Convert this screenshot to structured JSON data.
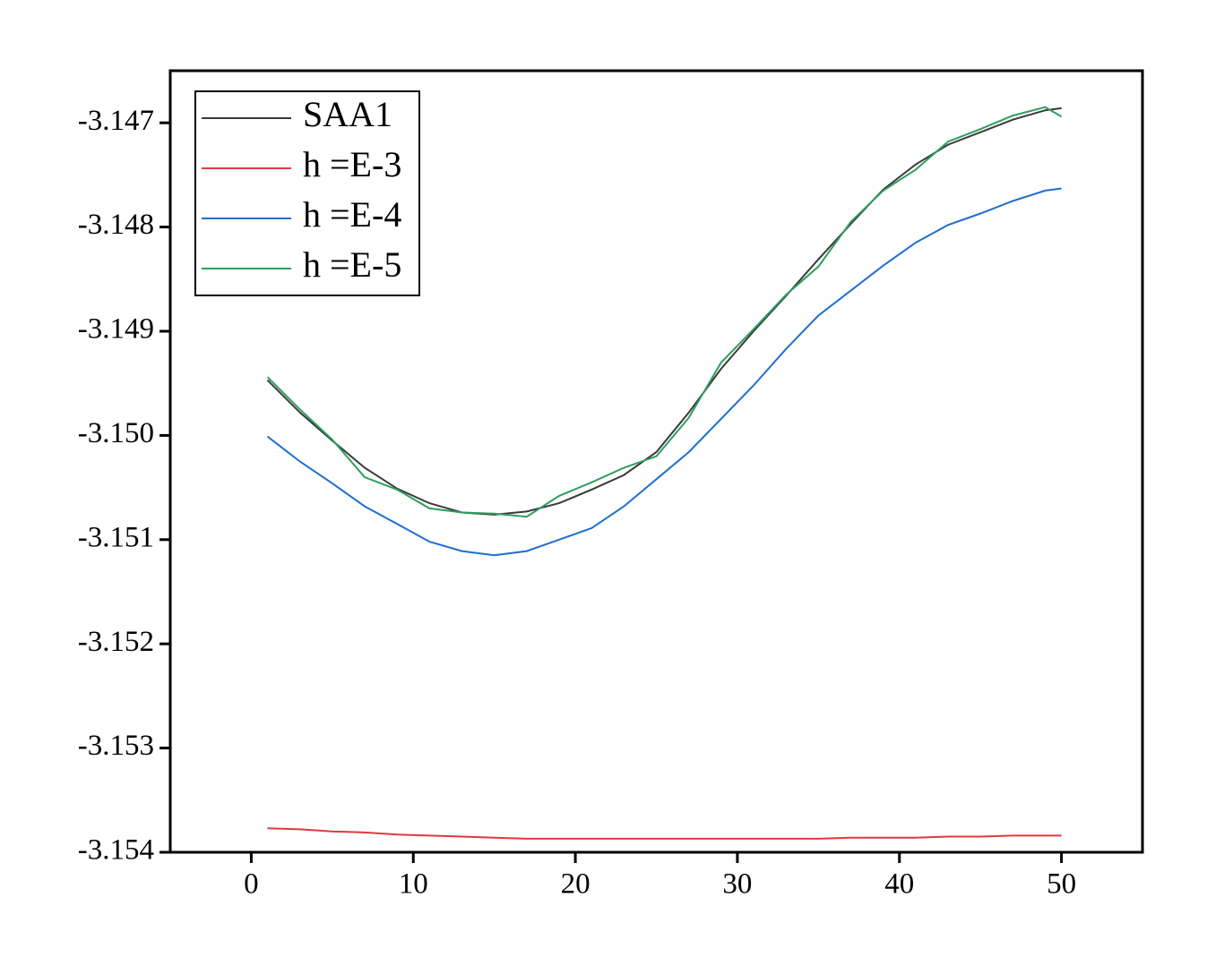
{
  "chart_data": {
    "type": "line",
    "x": [
      1,
      3,
      5,
      7,
      9,
      11,
      13,
      15,
      17,
      19,
      21,
      23,
      25,
      27,
      29,
      31,
      33,
      35,
      37,
      39,
      41,
      43,
      45,
      47,
      49,
      50
    ],
    "series": [
      {
        "name": "SAA1",
        "color": "#3a3a3a",
        "values": [
          -3.14947,
          -3.14978,
          -3.15005,
          -3.15031,
          -3.15051,
          -3.15065,
          -3.15074,
          -3.15076,
          -3.15073,
          -3.15065,
          -3.15052,
          -3.15038,
          -3.15016,
          -3.14978,
          -3.14936,
          -3.149,
          -3.14866,
          -3.14831,
          -3.14797,
          -3.14764,
          -3.1474,
          -3.14721,
          -3.14709,
          -3.14697,
          -3.14688,
          -3.14686
        ]
      },
      {
        "name": "h =E-3",
        "color": "#e0393e",
        "values": [
          -3.15377,
          -3.15378,
          -3.1538,
          -3.15381,
          -3.15383,
          -3.15384,
          -3.15385,
          -3.15386,
          -3.15387,
          -3.15387,
          -3.15387,
          -3.15387,
          -3.15387,
          -3.15387,
          -3.15387,
          -3.15387,
          -3.15387,
          -3.15387,
          -3.15386,
          -3.15386,
          -3.15386,
          -3.15385,
          -3.15385,
          -3.15384,
          -3.15384,
          -3.15384
        ]
      },
      {
        "name": "h =E-4",
        "color": "#1f6fd0",
        "values": [
          -3.15001,
          -3.15025,
          -3.15046,
          -3.15068,
          -3.15085,
          -3.15102,
          -3.15111,
          -3.15115,
          -3.15111,
          -3.151,
          -3.15089,
          -3.15068,
          -3.15042,
          -3.15016,
          -3.14984,
          -3.14952,
          -3.14917,
          -3.14885,
          -3.14861,
          -3.14837,
          -3.14815,
          -3.14798,
          -3.14787,
          -3.14775,
          -3.14765,
          -3.14763
        ]
      },
      {
        "name": "h =E-5",
        "color": "#2e9e5e",
        "values": [
          -3.14944,
          -3.14975,
          -3.15004,
          -3.1504,
          -3.15052,
          -3.1507,
          -3.15074,
          -3.15075,
          -3.15078,
          -3.15058,
          -3.15045,
          -3.15031,
          -3.1502,
          -3.14983,
          -3.1493,
          -3.14898,
          -3.14865,
          -3.14838,
          -3.14795,
          -3.14765,
          -3.14745,
          -3.14718,
          -3.14706,
          -3.14693,
          -3.14685,
          -3.14694
        ]
      }
    ],
    "xlim": [
      -5,
      55
    ],
    "xticks": [
      0,
      10,
      20,
      30,
      40,
      50
    ],
    "ylim": [
      -3.154,
      -3.1465
    ],
    "yticks": [
      -3.147,
      -3.148,
      -3.149,
      {
        "value": -3.15,
        "label": "-3.150"
      },
      -3.151,
      -3.152,
      -3.153,
      -3.154
    ],
    "legend": "upper left",
    "grid": false
  }
}
